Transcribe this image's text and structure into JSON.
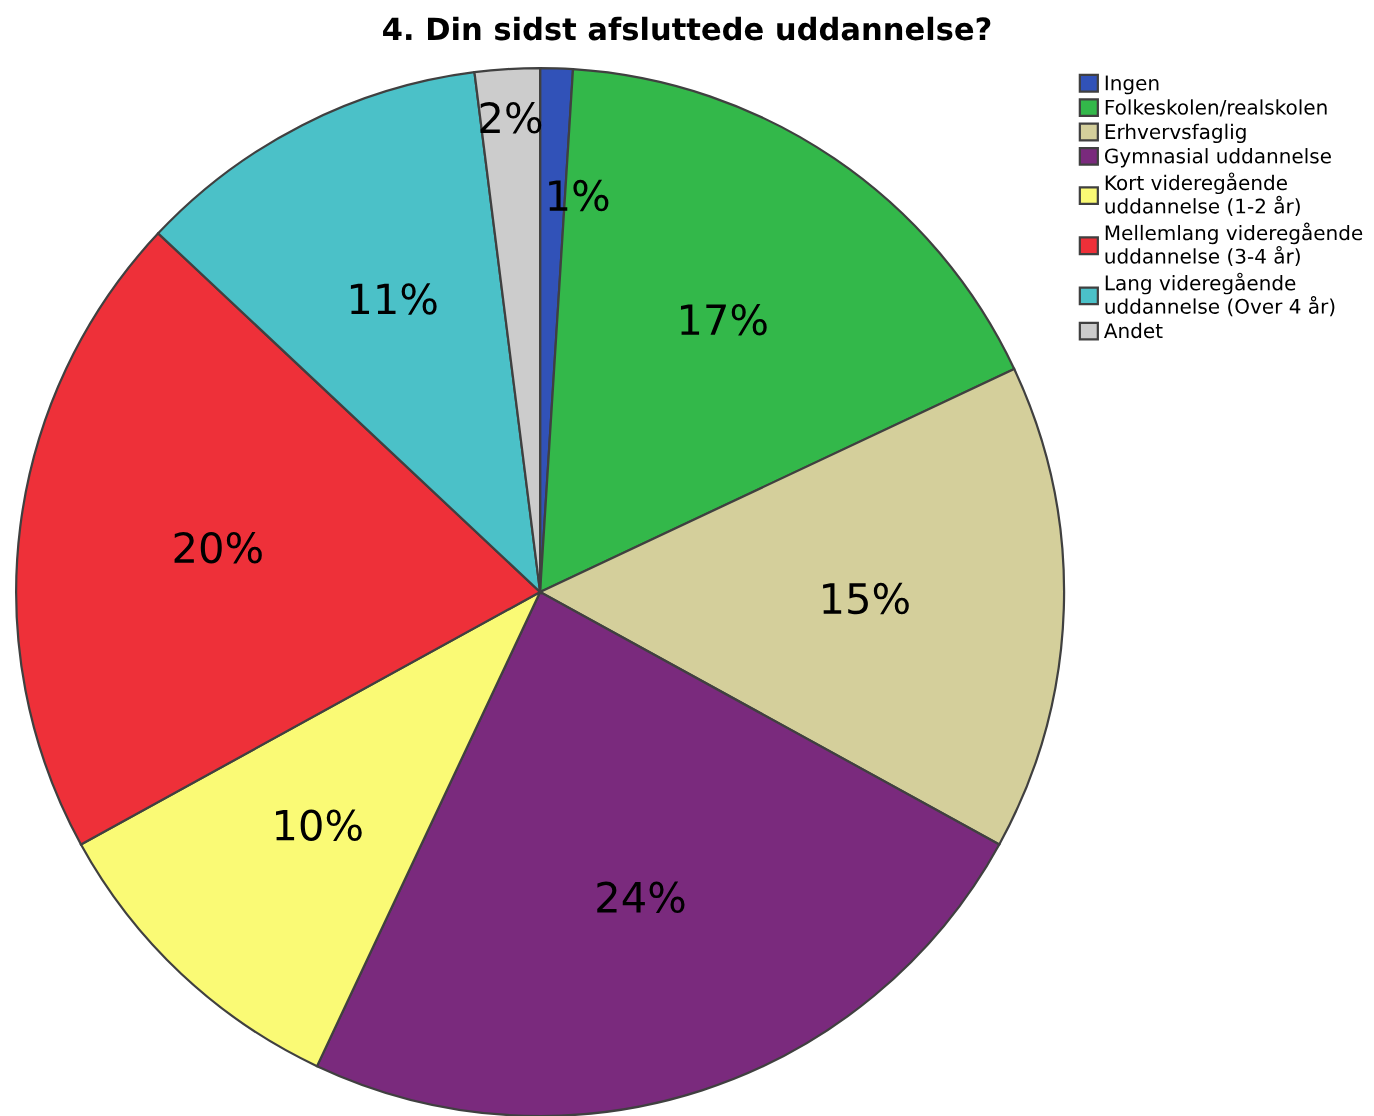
{
  "chart_data": {
    "type": "pie",
    "title": "4. Din sidst afsluttede uddannelse?",
    "categories": [
      "Ingen",
      "Folkeskolen/realskolen",
      "Erhvervsfaglig",
      "Gymnasial uddannelse",
      "Kort videregående\nuddannelse (1-2 år)",
      "Mellemlang videregående\nuddannelse (3-4 år)",
      "Lang videregående\nuddannelse (Over 4 år)",
      "Andet"
    ],
    "values": [
      1,
      17,
      15,
      24,
      10,
      20,
      11,
      2
    ],
    "colors": [
      "#3152b8",
      "#33b84a",
      "#d4cf9b",
      "#7a2a7d",
      "#fafa75",
      "#ee3039",
      "#4bc1c8",
      "#cccccc"
    ],
    "value_labels": [
      "1%",
      "17%",
      "15%",
      "24%",
      "10%",
      "20%",
      "11%",
      "2%"
    ],
    "legend": "top right"
  }
}
